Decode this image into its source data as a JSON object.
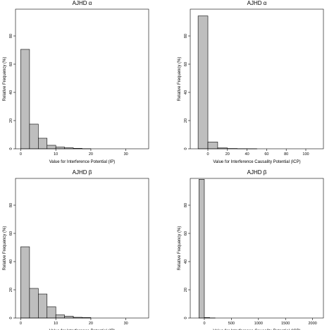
{
  "chart_data": [
    {
      "type": "bar",
      "title": "AJHD α",
      "xlabel": "Value for Interference Potential (IP)",
      "ylabel": "Relative Frequency (%)",
      "bar_color": "#bebebe",
      "bin_width": 2.5,
      "x_start": 0,
      "values": [
        70.5,
        17.5,
        7.5,
        2.5,
        1.2,
        0.7,
        0.3,
        0.1
      ],
      "xlim": [
        -1.5,
        36.5
      ],
      "ylim": [
        0,
        99
      ],
      "xticks": [
        0,
        10,
        20,
        30
      ],
      "yticks": [
        0,
        20,
        40,
        60,
        80
      ]
    },
    {
      "type": "bar",
      "title": "AJHD α",
      "xlabel": "Value for Interference Causality Potential (ICP)",
      "ylabel": "Relative Frequency (%)",
      "bar_color": "#bebebe",
      "bin_width": 10,
      "x_start": -10,
      "values": [
        94.2,
        4.8,
        0.6,
        0.2,
        0.1,
        0.05
      ],
      "xlim": [
        -18,
        118
      ],
      "ylim": [
        0,
        99
      ],
      "xticks": [
        0,
        20,
        40,
        60,
        80,
        100
      ],
      "yticks": [
        0,
        20,
        40,
        60,
        80
      ]
    },
    {
      "type": "bar",
      "title": "AJHD β",
      "xlabel": "Value for Interference Potential (IP)",
      "ylabel": "Relative Frequency (%)",
      "bar_color": "#bebebe",
      "bin_width": 2.5,
      "x_start": 0,
      "values": [
        50.5,
        21.0,
        17.0,
        8.0,
        2.2,
        1.3,
        0.5,
        0.3
      ],
      "xlim": [
        -1.5,
        36.5
      ],
      "ylim": [
        0,
        99
      ],
      "xticks": [
        0,
        10,
        20,
        30
      ],
      "yticks": [
        0,
        20,
        40,
        60,
        80
      ]
    },
    {
      "type": "bar",
      "title": "AJHD β",
      "xlabel": "Value for Interference Causality Potential (ICP)",
      "ylabel": "Relative Frequency (%)",
      "bar_color": "#bebebe",
      "bin_width": 100,
      "x_start": -100,
      "values": [
        98.3,
        0.3,
        0.1
      ],
      "xlim": [
        -260,
        2200
      ],
      "ylim": [
        0,
        99
      ],
      "xticks": [
        0,
        500,
        1000,
        1500,
        2000
      ],
      "yticks": [
        0,
        20,
        40,
        60,
        80
      ]
    }
  ]
}
